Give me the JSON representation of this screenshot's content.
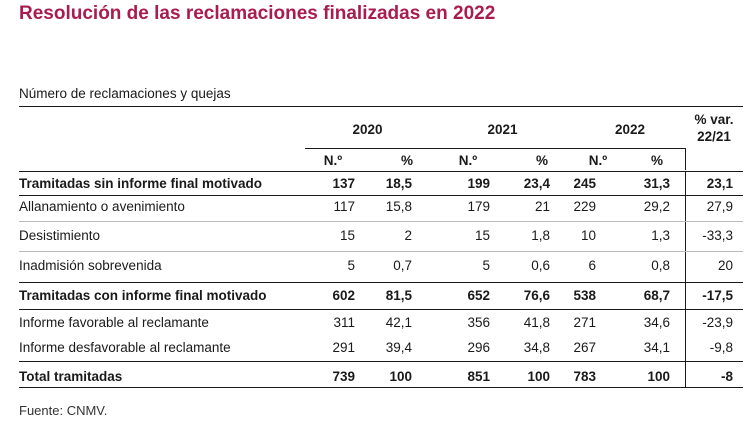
{
  "title": "Resolución de las reclamaciones finalizadas en 2022",
  "subtitle": "Número de reclamaciones y quejas",
  "years": [
    "2020",
    "2021",
    "2022"
  ],
  "var_header": "% var. 22/21",
  "subheaders": [
    "N.º",
    "%",
    "N.º",
    "%",
    "N.º",
    "%"
  ],
  "rows": [
    {
      "label": "Tramitadas sin informe final motivado",
      "bold": true,
      "values": [
        "137",
        "18,5",
        "199",
        "23,4",
        "245",
        "31,3",
        "23,1"
      ]
    },
    {
      "label": "Allanamiento o avenimiento",
      "bold": false,
      "values": [
        "117",
        "15,8",
        "179",
        "21",
        "229",
        "29,2",
        "27,9"
      ]
    },
    {
      "label": "Desistimiento",
      "bold": false,
      "values": [
        "15",
        "2",
        "15",
        "1,8",
        "10",
        "1,3",
        "-33,3"
      ]
    },
    {
      "label": "Inadmisión sobrevenida",
      "bold": false,
      "values": [
        "5",
        "0,7",
        "5",
        "0,6",
        "6",
        "0,8",
        "20"
      ]
    },
    {
      "label": "Tramitadas con informe final motivado",
      "bold": true,
      "values": [
        "602",
        "81,5",
        "652",
        "76,6",
        "538",
        "68,7",
        "-17,5"
      ]
    },
    {
      "label": "Informe favorable al reclamante",
      "bold": false,
      "values": [
        "311",
        "42,1",
        "356",
        "41,8",
        "271",
        "34,6",
        "-23,9"
      ]
    },
    {
      "label": "Informe desfavorable al reclamante",
      "bold": false,
      "values": [
        "291",
        "39,4",
        "296",
        "34,8",
        "267",
        "34,1",
        "-9,8"
      ]
    },
    {
      "label": "Total tramitadas",
      "bold": true,
      "values": [
        "739",
        "100",
        "851",
        "100",
        "783",
        "100",
        "-8"
      ]
    }
  ],
  "source": "Fuente: CNMV."
}
